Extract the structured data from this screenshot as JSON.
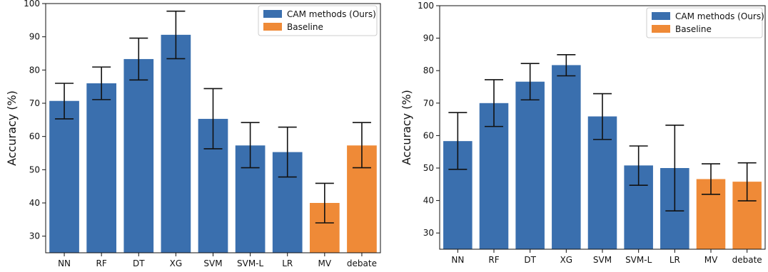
{
  "chart_data": [
    {
      "type": "bar",
      "categories": [
        "NN",
        "RF",
        "DT",
        "XG",
        "SVM",
        "SVM-L",
        "LR",
        "MV",
        "debate"
      ],
      "values": [
        70.7,
        76.0,
        83.3,
        90.6,
        65.3,
        57.3,
        55.3,
        40.0,
        57.3
      ],
      "error_low": [
        65.3,
        71.1,
        77.0,
        83.4,
        56.3,
        50.6,
        47.8,
        34.0,
        50.6
      ],
      "error_high": [
        76.0,
        80.9,
        89.6,
        97.7,
        74.4,
        64.2,
        62.8,
        45.9,
        64.2
      ],
      "groups": [
        "CAM methods (Ours)",
        "CAM methods (Ours)",
        "CAM methods (Ours)",
        "CAM methods (Ours)",
        "CAM methods (Ours)",
        "CAM methods (Ours)",
        "CAM methods (Ours)",
        "Baseline",
        "Baseline"
      ],
      "legend": [
        {
          "name": "CAM methods (Ours)",
          "color": "#3a6fae"
        },
        {
          "name": "Baseline",
          "color": "#ef8a37"
        }
      ],
      "legend_position": "top-right",
      "ylabel": "Accuracy (%)",
      "xlabel": "",
      "title": "",
      "ylim": [
        25,
        100
      ],
      "yticks": [
        30,
        40,
        50,
        60,
        70,
        80,
        90,
        100
      ],
      "grid": false
    },
    {
      "type": "bar",
      "categories": [
        "NN",
        "RF",
        "DT",
        "XG",
        "SVM",
        "SVM-L",
        "LR",
        "MV",
        "debate"
      ],
      "values": [
        58.3,
        70.0,
        76.6,
        81.7,
        65.9,
        50.8,
        50.0,
        46.6,
        45.8
      ],
      "error_low": [
        49.6,
        62.8,
        71.0,
        78.4,
        58.8,
        44.7,
        36.8,
        41.9,
        39.9
      ],
      "error_high": [
        67.1,
        77.2,
        82.2,
        84.9,
        72.9,
        56.8,
        63.2,
        51.3,
        51.6
      ],
      "groups": [
        "CAM methods (Ours)",
        "CAM methods (Ours)",
        "CAM methods (Ours)",
        "CAM methods (Ours)",
        "CAM methods (Ours)",
        "CAM methods (Ours)",
        "CAM methods (Ours)",
        "Baseline",
        "Baseline"
      ],
      "legend": [
        {
          "name": "CAM methods (Ours)",
          "color": "#3a6fae"
        },
        {
          "name": "Baseline",
          "color": "#ef8a37"
        }
      ],
      "legend_position": "top-right",
      "ylabel": "Accuracy (%)",
      "xlabel": "",
      "title": "",
      "ylim": [
        25,
        100
      ],
      "yticks": [
        30,
        40,
        50,
        60,
        70,
        80,
        90,
        100
      ],
      "grid": false
    }
  ]
}
